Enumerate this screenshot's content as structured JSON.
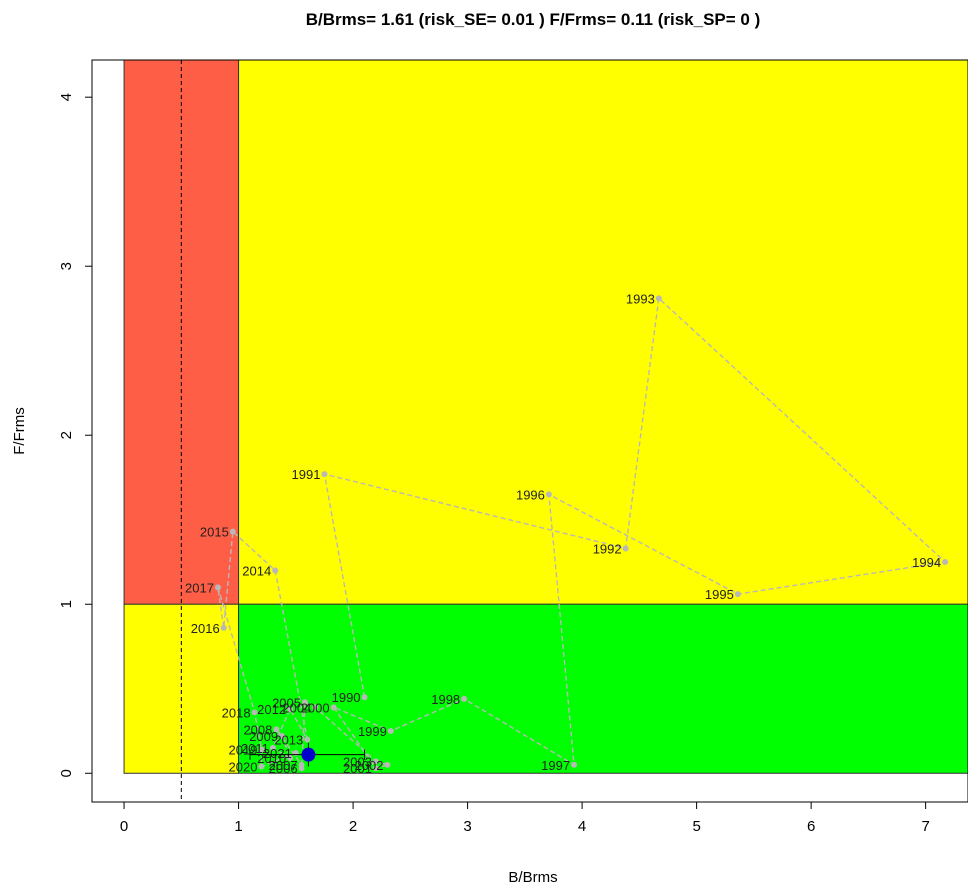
{
  "chart_data": {
    "type": "scatter",
    "title": "B/Brms= 1.61  (risk_SE= 0.01 )  F/Frms= 0.11  (risk_SP= 0 )",
    "xlabel": "B/Brms",
    "ylabel": "F/Frms",
    "xlim": [
      -0.28,
      7.37
    ],
    "ylim": [
      -0.17,
      4.22
    ],
    "x_ticks": [
      "0",
      "1",
      "2",
      "3",
      "4",
      "5",
      "6",
      "7"
    ],
    "y_ticks": [
      "0",
      "1",
      "2",
      "3",
      "4"
    ],
    "zones": [
      {
        "name": "red",
        "x": [
          0,
          1
        ],
        "y": [
          1,
          4.22
        ],
        "color": "#ff5e46"
      },
      {
        "name": "yellow-upper",
        "x": [
          1,
          7.37
        ],
        "y": [
          1,
          4.22
        ],
        "color": "#ffff00"
      },
      {
        "name": "yellow-lower",
        "x": [
          0,
          1
        ],
        "y": [
          0,
          1
        ],
        "color": "#ffff00"
      },
      {
        "name": "green",
        "x": [
          1,
          7.37
        ],
        "y": [
          0,
          1
        ],
        "color": "#00ff00"
      }
    ],
    "reference_line": {
      "x": 0.5,
      "style": "dashed",
      "color": "#000000"
    },
    "trajectory_color": "#b8b8b8",
    "current_point": {
      "x": 1.61,
      "y": 0.11,
      "color": "#0000cc"
    },
    "error_bars": {
      "x": [
        1.1,
        2.1
      ],
      "y": [
        0.04,
        0.18
      ]
    },
    "points": [
      {
        "year": "1990",
        "x": 2.1,
        "y": 0.45
      },
      {
        "year": "1991",
        "x": 1.75,
        "y": 1.77
      },
      {
        "year": "1992",
        "x": 4.38,
        "y": 1.33
      },
      {
        "year": "1993",
        "x": 4.67,
        "y": 2.81
      },
      {
        "year": "1994",
        "x": 7.17,
        "y": 1.25
      },
      {
        "year": "1995",
        "x": 5.36,
        "y": 1.06
      },
      {
        "year": "1996",
        "x": 3.71,
        "y": 1.65
      },
      {
        "year": "1997",
        "x": 3.93,
        "y": 0.05
      },
      {
        "year": "1998",
        "x": 2.97,
        "y": 0.44
      },
      {
        "year": "1999",
        "x": 2.33,
        "y": 0.25
      },
      {
        "year": "2000",
        "x": 1.83,
        "y": 0.39
      },
      {
        "year": "2001",
        "x": 2.2,
        "y": 0.03
      },
      {
        "year": "2002",
        "x": 2.3,
        "y": 0.05
      },
      {
        "year": "2003",
        "x": 2.2,
        "y": 0.07
      },
      {
        "year": "2004",
        "x": 1.67,
        "y": 0.39
      },
      {
        "year": "2005",
        "x": 1.58,
        "y": 0.42
      },
      {
        "year": "2006",
        "x": 1.55,
        "y": 0.03
      },
      {
        "year": "2007",
        "x": 1.55,
        "y": 0.05
      },
      {
        "year": "2008",
        "x": 1.33,
        "y": 0.26
      },
      {
        "year": "2009",
        "x": 1.38,
        "y": 0.22
      },
      {
        "year": "2010",
        "x": 1.45,
        "y": 0.09
      },
      {
        "year": "2011",
        "x": 1.3,
        "y": 0.15
      },
      {
        "year": "2012",
        "x": 1.45,
        "y": 0.38
      },
      {
        "year": "2013",
        "x": 1.6,
        "y": 0.2
      },
      {
        "year": "2014",
        "x": 1.32,
        "y": 1.2
      },
      {
        "year": "2015",
        "x": 0.95,
        "y": 1.43
      },
      {
        "year": "2016",
        "x": 0.87,
        "y": 0.86
      },
      {
        "year": "2017",
        "x": 0.82,
        "y": 1.1
      },
      {
        "year": "2018",
        "x": 1.14,
        "y": 0.36
      },
      {
        "year": "2019",
        "x": 1.2,
        "y": 0.14
      },
      {
        "year": "2020",
        "x": 1.2,
        "y": 0.04
      },
      {
        "year": "2021",
        "x": 1.5,
        "y": 0.12
      }
    ]
  }
}
